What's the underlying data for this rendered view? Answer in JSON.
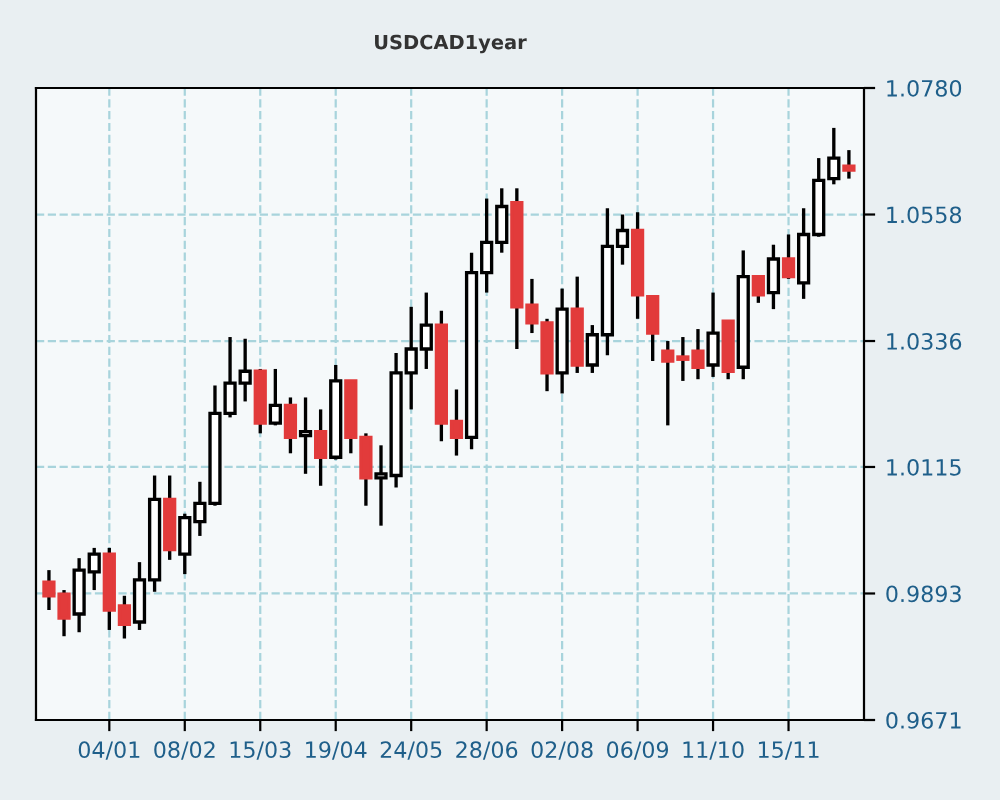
{
  "chart_data": {
    "type": "candlestick",
    "title": "USDCAD1year",
    "x": [
      "2009-12-07",
      "2009-12-14",
      "2009-12-21",
      "2009-12-28",
      "2010-01-04",
      "2010-01-11",
      "2010-01-18",
      "2010-01-25",
      "2010-02-01",
      "2010-02-08",
      "2010-02-15",
      "2010-02-22",
      "2010-03-01",
      "2010-03-08",
      "2010-03-15",
      "2010-03-22",
      "2010-03-29",
      "2010-04-05",
      "2010-04-12",
      "2010-04-19",
      "2010-04-26",
      "2010-05-03",
      "2010-05-10",
      "2010-05-17",
      "2010-05-24",
      "2010-05-31",
      "2010-06-07",
      "2010-06-14",
      "2010-06-21",
      "2010-06-28",
      "2010-07-05",
      "2010-07-12",
      "2010-07-19",
      "2010-07-26",
      "2010-08-02",
      "2010-08-09",
      "2010-08-16",
      "2010-08-23",
      "2010-08-30",
      "2010-09-06",
      "2010-09-13",
      "2010-09-20",
      "2010-09-27",
      "2010-10-04",
      "2010-10-11",
      "2010-10-18",
      "2010-10-25",
      "2010-11-01",
      "2010-11-08",
      "2010-11-15",
      "2010-11-22",
      "2010-11-29",
      "2010-12-06",
      "2010-12-13"
    ],
    "ohlc": [
      [
        0.9913,
        0.9934,
        0.9864,
        0.9889
      ],
      [
        0.9892,
        0.9899,
        0.9818,
        0.985
      ],
      [
        0.9857,
        0.9955,
        0.9825,
        0.9934
      ],
      [
        0.9931,
        0.9973,
        0.9899,
        0.9962
      ],
      [
        0.9962,
        0.9973,
        0.9829,
        0.9864
      ],
      [
        0.9871,
        0.9889,
        0.9814,
        0.9839
      ],
      [
        0.9843,
        0.9948,
        0.9829,
        0.9917
      ],
      [
        0.9917,
        1.01,
        0.9896,
        1.0058
      ],
      [
        1.0058,
        1.01,
        0.9952,
        0.997
      ],
      [
        0.9962,
        1.0033,
        0.9927,
        1.0026
      ],
      [
        1.0019,
        1.0089,
        0.9994,
        1.0051
      ],
      [
        1.0051,
        1.0258,
        1.0047,
        1.0209
      ],
      [
        1.0209,
        1.0343,
        1.0202,
        1.0262
      ],
      [
        1.0262,
        1.034,
        1.023,
        1.0283
      ],
      [
        1.0283,
        1.0287,
        1.0174,
        1.0192
      ],
      [
        1.0192,
        1.0287,
        1.0188,
        1.0223
      ],
      [
        1.0223,
        1.0237,
        1.0139,
        1.0167
      ],
      [
        1.017,
        1.0237,
        1.0103,
        1.0177
      ],
      [
        1.0177,
        1.0216,
        1.0082,
        1.0132
      ],
      [
        1.0132,
        1.0294,
        1.0128,
        1.0266
      ],
      [
        1.0266,
        1.0266,
        1.0139,
        1.0167
      ],
      [
        1.0167,
        1.0174,
        1.0047,
        1.0096
      ],
      [
        1.0096,
        1.0153,
        1.0012,
        1.0103
      ],
      [
        1.01,
        1.0315,
        1.0079,
        1.028
      ],
      [
        1.028,
        1.0396,
        1.0216,
        1.0322
      ],
      [
        1.0322,
        1.0421,
        1.0287,
        1.0364
      ],
      [
        1.0364,
        1.0389,
        1.016,
        1.0192
      ],
      [
        1.0195,
        1.0251,
        1.0135,
        1.0167
      ],
      [
        1.0167,
        1.0491,
        1.0146,
        1.0456
      ],
      [
        1.0456,
        1.0586,
        1.0421,
        1.0509
      ],
      [
        1.0509,
        1.0604,
        1.0491,
        1.0572
      ],
      [
        1.0579,
        1.0604,
        1.0322,
        1.0396
      ],
      [
        1.0399,
        1.0445,
        1.035,
        1.0368
      ],
      [
        1.0368,
        1.0375,
        1.0248,
        1.028
      ],
      [
        1.028,
        1.0428,
        1.0244,
        1.0392
      ],
      [
        1.0392,
        1.0449,
        1.028,
        1.0294
      ],
      [
        1.0294,
        1.0364,
        1.028,
        1.0347
      ],
      [
        1.0347,
        1.0569,
        1.0311,
        1.0502
      ],
      [
        1.0502,
        1.0558,
        1.047,
        1.053
      ],
      [
        1.053,
        1.0562,
        1.0375,
        1.0417
      ],
      [
        1.0414,
        1.0414,
        1.0301,
        1.035
      ],
      [
        1.0318,
        1.0336,
        1.0188,
        1.0301
      ],
      [
        1.0308,
        1.0343,
        1.0266,
        1.0304
      ],
      [
        1.0318,
        1.0357,
        1.0269,
        1.029
      ],
      [
        1.0294,
        1.0421,
        1.0273,
        1.035
      ],
      [
        1.0371,
        1.0371,
        1.0269,
        1.0283
      ],
      [
        1.029,
        1.0495,
        1.0269,
        1.0449
      ],
      [
        1.0449,
        1.0449,
        1.0403,
        1.0417
      ],
      [
        1.0421,
        1.0505,
        1.0392,
        1.048
      ],
      [
        1.048,
        1.0523,
        1.0445,
        1.0449
      ],
      [
        1.0438,
        1.0569,
        1.041,
        1.0523
      ],
      [
        1.0523,
        1.0657,
        1.0519,
        1.0618
      ],
      [
        1.0621,
        1.071,
        1.0611,
        1.0657
      ],
      [
        1.0643,
        1.0671,
        1.0621,
        1.0636
      ]
    ],
    "colors": [
      "#e23b3b",
      "#e23b3b",
      "#ffffff",
      "#ffffff",
      "#e23b3b",
      "#e23b3b",
      "#ffffff",
      "#ffffff",
      "#e23b3b",
      "#ffffff",
      "#ffffff",
      "#ffffff",
      "#ffffff",
      "#ffffff",
      "#e23b3b",
      "#ffffff",
      "#e23b3b",
      "#ffffff",
      "#e23b3b",
      "#ffffff",
      "#e23b3b",
      "#e23b3b",
      "#ffffff",
      "#ffffff",
      "#ffffff",
      "#ffffff",
      "#e23b3b",
      "#e23b3b",
      "#ffffff",
      "#ffffff",
      "#ffffff",
      "#e23b3b",
      "#e23b3b",
      "#e23b3b",
      "#ffffff",
      "#e23b3b",
      "#ffffff",
      "#ffffff",
      "#ffffff",
      "#e23b3b",
      "#e23b3b",
      "#e23b3b",
      "#e23b3b",
      "#e23b3b",
      "#ffffff",
      "#e23b3b",
      "#ffffff",
      "#e23b3b",
      "#ffffff",
      "#e23b3b",
      "#ffffff",
      "#ffffff",
      "#ffffff",
      "#e23b3b"
    ],
    "xlim": [
      "2009-12-01",
      "2010-12-20"
    ],
    "xticks": [
      {
        "value": "2010-01-04",
        "label": "04/01"
      },
      {
        "value": "2010-02-08",
        "label": "08/02"
      },
      {
        "value": "2010-03-15",
        "label": "15/03"
      },
      {
        "value": "2010-04-19",
        "label": "19/04"
      },
      {
        "value": "2010-05-24",
        "label": "24/05"
      },
      {
        "value": "2010-06-28",
        "label": "28/06"
      },
      {
        "value": "2010-08-02",
        "label": "02/08"
      },
      {
        "value": "2010-09-06",
        "label": "06/09"
      },
      {
        "value": "2010-10-11",
        "label": "11/10"
      },
      {
        "value": "2010-11-15",
        "label": "15/11"
      }
    ],
    "ylim": [
      0.9671,
      1.078
    ],
    "yticks": [
      {
        "value": 0.9671,
        "label": "0.9671"
      },
      {
        "value": 0.9893,
        "label": "0.9893"
      },
      {
        "value": 1.0115,
        "label": "1.0115"
      },
      {
        "value": 1.0336,
        "label": "1.0336"
      },
      {
        "value": 1.0558,
        "label": "1.0558"
      },
      {
        "value": 1.078,
        "label": "1.0780"
      }
    ],
    "grid": true
  }
}
